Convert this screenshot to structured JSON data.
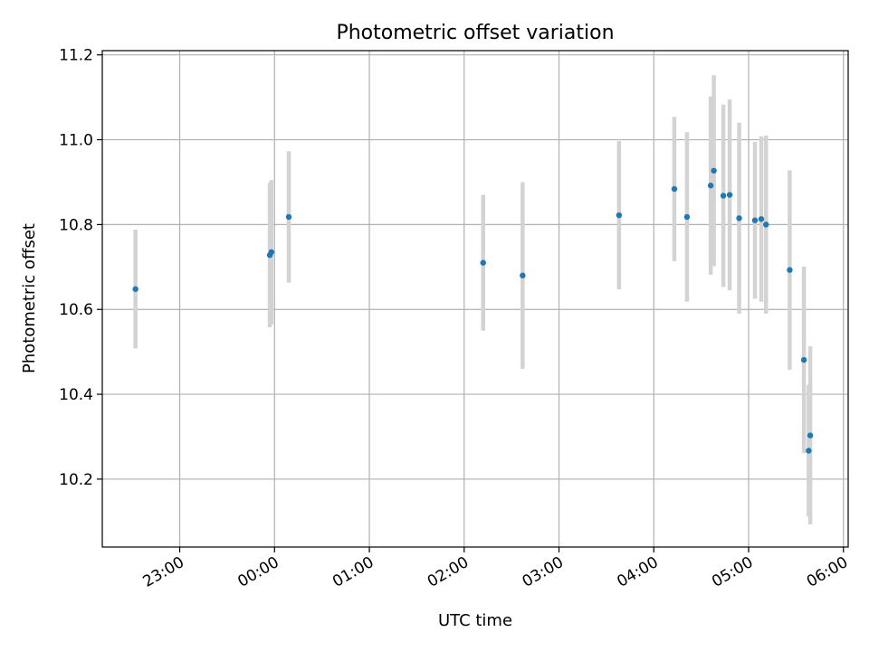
{
  "chart_data": {
    "type": "scatter",
    "title": "Photometric offset variation",
    "xlabel": "UTC time",
    "ylabel": "Photometric offset",
    "x_ticks": [
      "23:00",
      "00:00",
      "01:00",
      "02:00",
      "03:00",
      "04:00",
      "05:00",
      "06:00"
    ],
    "y_ticks": [
      "10.2",
      "10.4",
      "10.6",
      "10.8",
      "11.0",
      "11.2"
    ],
    "xlim": [
      "22:11",
      "06:03"
    ],
    "ylim": [
      10.04,
      11.21
    ],
    "grid": true,
    "marker_color": "#1f77b4",
    "errorbar_color": "#d3d3d3",
    "points": [
      {
        "t": "22:32",
        "y": 10.648,
        "err": 0.14
      },
      {
        "t": "23:57",
        "y": 10.728,
        "err": 0.17
      },
      {
        "t": "23:58",
        "y": 10.735,
        "err": 0.17
      },
      {
        "t": "00:09",
        "y": 10.818,
        "err": 0.155
      },
      {
        "t": "02:12",
        "y": 10.71,
        "err": 0.16
      },
      {
        "t": "02:37",
        "y": 10.68,
        "err": 0.22
      },
      {
        "t": "03:38",
        "y": 10.822,
        "err": 0.175
      },
      {
        "t": "04:13",
        "y": 10.884,
        "err": 0.17
      },
      {
        "t": "04:21",
        "y": 10.818,
        "err": 0.2
      },
      {
        "t": "04:36",
        "y": 10.892,
        "err": 0.21
      },
      {
        "t": "04:38",
        "y": 10.927,
        "err": 0.225
      },
      {
        "t": "04:44",
        "y": 10.868,
        "err": 0.215
      },
      {
        "t": "04:48",
        "y": 10.87,
        "err": 0.225
      },
      {
        "t": "04:54",
        "y": 10.815,
        "err": 0.225
      },
      {
        "t": "05:04",
        "y": 10.81,
        "err": 0.185
      },
      {
        "t": "05:08",
        "y": 10.813,
        "err": 0.195
      },
      {
        "t": "05:11",
        "y": 10.8,
        "err": 0.21
      },
      {
        "t": "05:26",
        "y": 10.693,
        "err": 0.235
      },
      {
        "t": "05:35",
        "y": 10.481,
        "err": 0.22
      },
      {
        "t": "05:38",
        "y": 10.267,
        "err": 0.155
      },
      {
        "t": "05:39",
        "y": 10.303,
        "err": 0.21
      }
    ]
  }
}
